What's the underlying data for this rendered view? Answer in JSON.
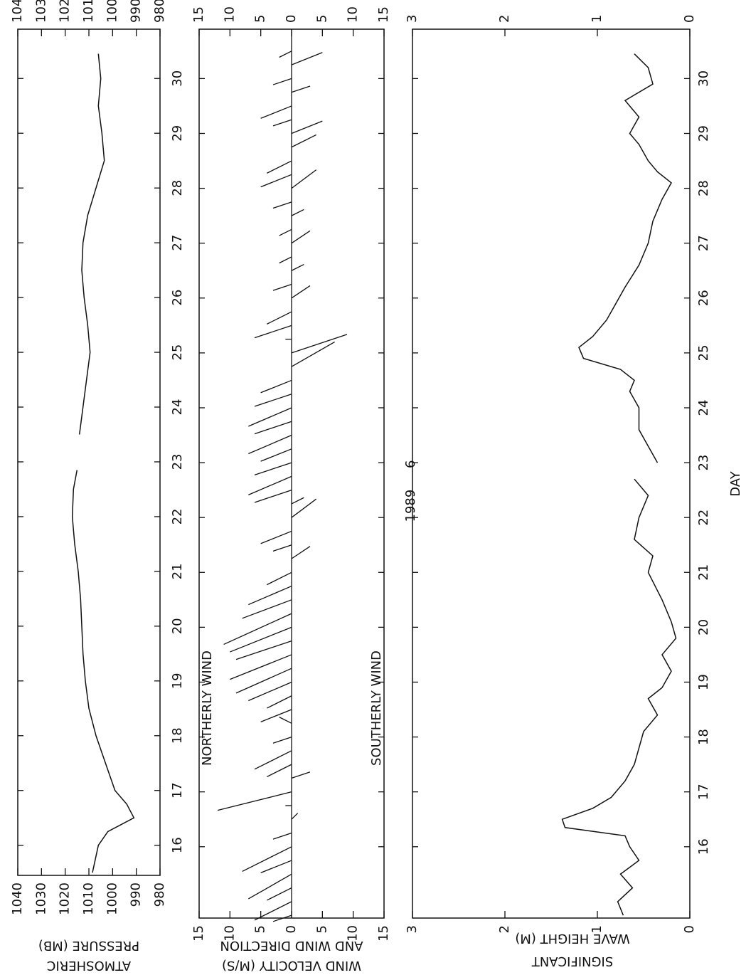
{
  "chart_data": [
    {
      "type": "line",
      "ylabel": [
        "ATMOSHERIC",
        "PRESSURE (MB)"
      ],
      "xlim": [
        15.45,
        30.9
      ],
      "xticks": [
        16,
        17,
        18,
        19,
        20,
        21,
        22,
        23,
        24,
        25,
        26,
        27,
        28,
        29,
        30
      ],
      "ylim": [
        980,
        1040
      ],
      "yticks": [
        1040,
        1030,
        1020,
        1010,
        1000,
        990,
        980
      ],
      "color": "#111111",
      "x": [
        15.5,
        16.0,
        16.25,
        16.5,
        16.75,
        17.0,
        17.5,
        18.0,
        18.5,
        19.0,
        19.5,
        20.0,
        20.5,
        21.0,
        21.5,
        22.0,
        22.5,
        22.85,
        23.0,
        23.5,
        24.0,
        24.5,
        25.0,
        25.5,
        26.0,
        26.5,
        27.0,
        27.5,
        28.0,
        28.5,
        29.0,
        29.5,
        30.0,
        30.45
      ],
      "values": [
        1008.5,
        1006,
        1002,
        991,
        994,
        999,
        1003,
        1007,
        1010,
        1011.5,
        1012.5,
        1013,
        1013.5,
        1014.5,
        1016,
        1017,
        1016.5,
        1015,
        null,
        1014,
        1012.5,
        1011,
        1009.5,
        1010.5,
        1012,
        1013,
        1012.5,
        1010.5,
        1007,
        1003.5,
        1004.5,
        1006,
        1005,
        1006
      ]
    },
    {
      "type": "stick",
      "ylabel": [
        "WIND VELOCITY (M/S)",
        "AND WIND DIRECTION"
      ],
      "annotations": [
        "NORTHERLY WIND",
        "SOUTHERLY WIND"
      ],
      "xlim": [
        14.7,
        30.9
      ],
      "ylim": [
        -15,
        15
      ],
      "yticks": [
        15,
        10,
        5,
        0,
        {
          "value": -5,
          "label": "5"
        },
        {
          "value": -10,
          "label": "10"
        },
        {
          "value": -15,
          "label": "15"
        }
      ],
      "color": "#111111",
      "x": [
        14.75,
        15,
        15.25,
        15.5,
        15.75,
        16,
        16.25,
        16.5,
        16.75,
        17,
        17.25,
        17.5,
        17.75,
        18,
        18.25,
        18.5,
        18.75,
        19,
        19.25,
        19.5,
        19.75,
        20,
        20.25,
        20.5,
        20.75,
        21,
        21.25,
        21.5,
        21.75,
        22,
        22.25,
        22.5,
        22.75,
        23,
        23.25,
        23.5,
        23.75,
        24,
        24.25,
        24.5,
        24.75,
        25,
        25.25,
        25.5,
        25.75,
        26,
        26.25,
        26.5,
        26.75,
        27,
        27.25,
        27.5,
        27.75,
        28,
        28.25,
        28.5,
        28.75,
        29,
        29.25,
        29.5,
        29.75,
        30,
        30.25,
        30.5
      ],
      "v": [
        3,
        6,
        4,
        7,
        5,
        8,
        3,
        -1,
        1,
        12,
        -3,
        4,
        6,
        3,
        2,
        5,
        4,
        7,
        9,
        10,
        9,
        10,
        11,
        8,
        7,
        4,
        -3,
        3,
        5,
        -4,
        -2,
        6,
        7,
        6,
        5,
        7,
        6,
        7,
        6,
        5,
        -7,
        -9,
        1,
        6,
        4,
        -3,
        3,
        -2,
        2,
        -3,
        2,
        -2,
        3,
        -4,
        5,
        4,
        -4,
        -5,
        3,
        5,
        -3,
        3,
        -5,
        2
      ],
      "u": [
        -1,
        -3,
        -2,
        -4,
        -2,
        -4,
        -1,
        1,
        0,
        -3,
        1,
        -2,
        -3,
        -1,
        1,
        -2,
        -2,
        -3,
        -4,
        -4,
        -3,
        -4,
        -5,
        -3,
        -3,
        -2,
        2,
        -1,
        -2,
        3,
        1,
        -2,
        -3,
        -2,
        -2,
        -3,
        -2,
        -3,
        -2,
        -2,
        4,
        3,
        0,
        -2,
        -2,
        2,
        -1,
        1,
        -1,
        2,
        -1,
        1,
        -1,
        3,
        -2,
        -2,
        2,
        2,
        -1,
        -2,
        1,
        -1,
        2,
        -1
      ]
    },
    {
      "type": "line",
      "ylabel": [
        "SIGNIFICANT",
        "WAVE HEIGHT (M)"
      ],
      "xlabel": "DAY",
      "annotation": "1989 6",
      "xlim": [
        14.7,
        30.9
      ],
      "xticks": [
        16,
        17,
        18,
        19,
        20,
        21,
        22,
        23,
        24,
        25,
        26,
        27,
        28,
        29,
        30
      ],
      "ylim": [
        0,
        3
      ],
      "yticks": [
        3,
        2,
        1,
        0
      ],
      "color": "#111111",
      "x": [
        14.75,
        15.0,
        15.25,
        15.5,
        15.75,
        16.0,
        16.2,
        16.35,
        16.5,
        16.7,
        16.9,
        17.2,
        17.5,
        17.8,
        18.1,
        18.4,
        18.7,
        18.9,
        19.2,
        19.5,
        19.8,
        20.1,
        20.5,
        21.0,
        21.3,
        21.6,
        22.0,
        22.4,
        22.7,
        22.85,
        23.0,
        23.3,
        23.6,
        24.0,
        24.3,
        24.5,
        24.7,
        24.9,
        25.1,
        25.3,
        25.6,
        25.9,
        26.2,
        26.6,
        27.0,
        27.4,
        27.8,
        28.1,
        28.3,
        28.5,
        28.8,
        29.0,
        29.3,
        29.6,
        29.9,
        30.2,
        30.45
      ],
      "values": [
        0.72,
        0.78,
        0.62,
        0.75,
        0.55,
        0.65,
        0.7,
        1.35,
        1.38,
        1.05,
        0.85,
        0.7,
        0.6,
        0.55,
        0.5,
        0.35,
        0.45,
        0.3,
        0.2,
        0.3,
        0.15,
        0.2,
        0.3,
        0.45,
        0.4,
        0.6,
        0.55,
        0.45,
        0.6,
        null,
        0.35,
        0.45,
        0.55,
        0.55,
        0.65,
        0.6,
        0.75,
        1.15,
        1.2,
        1.05,
        0.9,
        0.8,
        0.7,
        0.55,
        0.45,
        0.4,
        0.3,
        0.2,
        0.35,
        0.45,
        0.55,
        0.65,
        0.55,
        0.7,
        0.4,
        0.45,
        0.6
      ]
    }
  ]
}
